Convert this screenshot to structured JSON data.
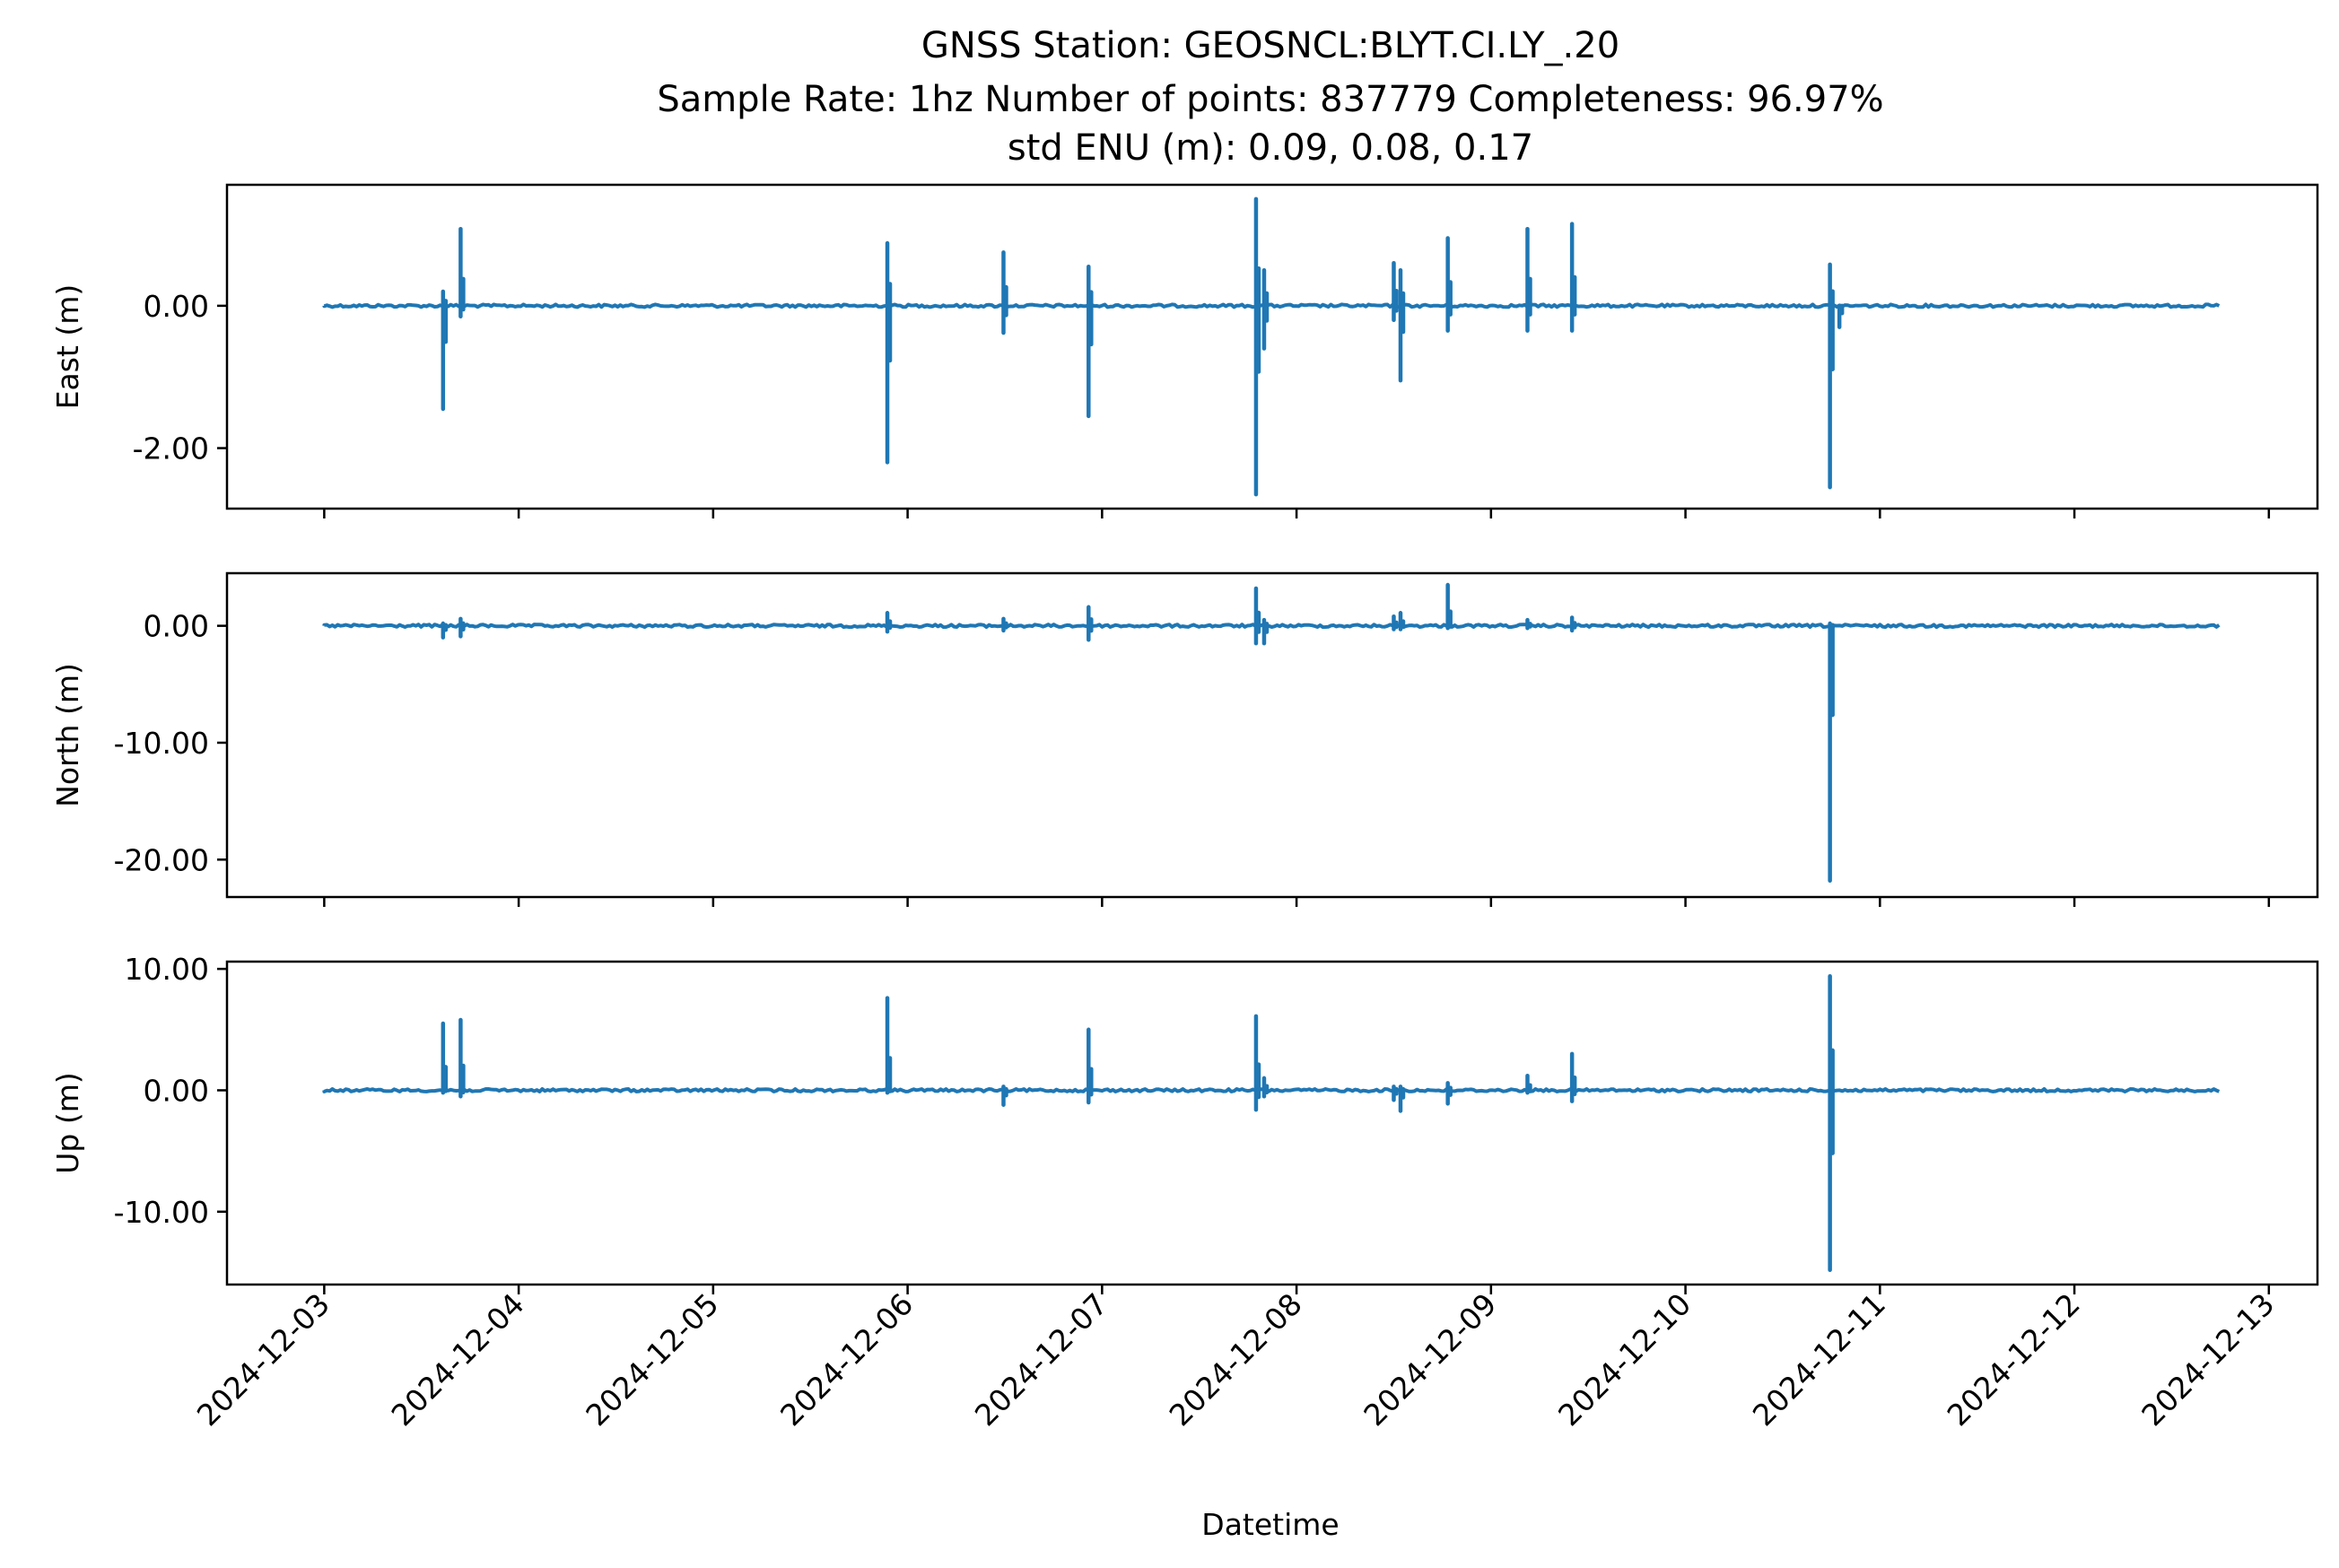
{
  "chart_data": {
    "type": "line",
    "title_lines": [
      "GNSS Station: GEOSNCL:BLYT.CI.LY_.20",
      "Sample Rate: 1hz   Number of points: 837779    Completeness:  96.97%",
      "std ENU (m):  0.09, 0.08, 0.17"
    ],
    "xlabel": "Datetime",
    "x_ticks": [
      "2024-12-03",
      "2024-12-04",
      "2024-12-05",
      "2024-12-06",
      "2024-12-07",
      "2024-12-08",
      "2024-12-09",
      "2024-12-10",
      "2024-12-11",
      "2024-12-12",
      "2024-12-13"
    ],
    "x_range": [
      "2024-12-02T12:00",
      "2024-12-13T06:00"
    ],
    "x_data_range": [
      "2024-12-03T00:00",
      "2024-12-12T18:00"
    ],
    "line_color": "#1f77b4",
    "panels": [
      {
        "key": "east",
        "ylabel": "East (m)",
        "ylim": [
          -2.85,
          1.7
        ],
        "yticks": [
          0.0,
          -2.0
        ],
        "ytick_labels": [
          "0.00",
          "-2.00"
        ],
        "spikes": [
          {
            "t": "2024-12-03T14:40",
            "min": -1.45,
            "max": 0.2
          },
          {
            "t": "2024-12-03T16:50",
            "min": -0.15,
            "max": 1.08
          },
          {
            "t": "2024-12-05T21:30",
            "min": -2.2,
            "max": 0.88
          },
          {
            "t": "2024-12-06T11:50",
            "min": -0.38,
            "max": 0.75
          },
          {
            "t": "2024-12-06T22:20",
            "min": -1.55,
            "max": 0.55
          },
          {
            "t": "2024-12-07T19:00",
            "min": -2.65,
            "max": 1.5
          },
          {
            "t": "2024-12-07T20:00",
            "min": -0.6,
            "max": 0.5
          },
          {
            "t": "2024-12-08T12:00",
            "min": -0.2,
            "max": 0.6
          },
          {
            "t": "2024-12-08T12:50",
            "min": -1.05,
            "max": 0.5
          },
          {
            "t": "2024-12-08T18:40",
            "min": -0.35,
            "max": 0.95
          },
          {
            "t": "2024-12-09T04:30",
            "min": -0.35,
            "max": 1.08
          },
          {
            "t": "2024-12-09T10:00",
            "min": -0.35,
            "max": 1.15
          },
          {
            "t": "2024-12-10T17:50",
            "min": -2.55,
            "max": 0.58
          },
          {
            "t": "2024-12-10T19:00",
            "min": -0.3,
            "max": 0.0
          }
        ]
      },
      {
        "key": "north",
        "ylabel": "North (m)",
        "ylim": [
          -23.2,
          4.5
        ],
        "yticks": [
          0.0,
          -10.0,
          -20.0
        ],
        "ytick_labels": [
          "0.00",
          "-10.00",
          "-20.00"
        ],
        "spikes": [
          {
            "t": "2024-12-03T14:40",
            "min": -1.0,
            "max": 0.2
          },
          {
            "t": "2024-12-03T16:50",
            "min": -0.9,
            "max": 0.6
          },
          {
            "t": "2024-12-05T21:30",
            "min": -0.5,
            "max": 1.1
          },
          {
            "t": "2024-12-06T11:50",
            "min": -0.4,
            "max": 0.6
          },
          {
            "t": "2024-12-06T22:20",
            "min": -1.2,
            "max": 1.6
          },
          {
            "t": "2024-12-07T19:00",
            "min": -1.5,
            "max": 3.2
          },
          {
            "t": "2024-12-07T20:00",
            "min": -1.5,
            "max": 0.5
          },
          {
            "t": "2024-12-08T12:00",
            "min": -0.3,
            "max": 0.8
          },
          {
            "t": "2024-12-08T12:50",
            "min": -0.3,
            "max": 1.1
          },
          {
            "t": "2024-12-08T18:40",
            "min": -0.2,
            "max": 3.5
          },
          {
            "t": "2024-12-09T04:30",
            "min": -0.2,
            "max": 0.5
          },
          {
            "t": "2024-12-09T10:00",
            "min": -0.4,
            "max": 0.7
          },
          {
            "t": "2024-12-10T17:50",
            "min": -21.8,
            "max": 0.2
          }
        ]
      },
      {
        "key": "up",
        "ylabel": "Up (m)",
        "ylim": [
          -16.0,
          10.6
        ],
        "yticks": [
          10.0,
          0.0,
          -10.0
        ],
        "ytick_labels": [
          "10.00",
          "0.00",
          "-10.00"
        ],
        "spikes": [
          {
            "t": "2024-12-03T14:40",
            "min": -0.2,
            "max": 5.5
          },
          {
            "t": "2024-12-03T16:50",
            "min": -0.5,
            "max": 5.8
          },
          {
            "t": "2024-12-05T21:30",
            "min": -0.2,
            "max": 7.6
          },
          {
            "t": "2024-12-06T11:50",
            "min": -1.2,
            "max": 0.3
          },
          {
            "t": "2024-12-06T22:20",
            "min": -1.0,
            "max": 5.0
          },
          {
            "t": "2024-12-07T19:00",
            "min": -1.6,
            "max": 6.1
          },
          {
            "t": "2024-12-07T20:00",
            "min": -0.5,
            "max": 1.0
          },
          {
            "t": "2024-12-08T12:00",
            "min": -0.8,
            "max": 0.3
          },
          {
            "t": "2024-12-08T12:50",
            "min": -1.7,
            "max": 0.3
          },
          {
            "t": "2024-12-08T18:40",
            "min": -1.1,
            "max": 0.6
          },
          {
            "t": "2024-12-09T04:30",
            "min": -0.2,
            "max": 1.2
          },
          {
            "t": "2024-12-09T10:00",
            "min": -0.9,
            "max": 3.0
          },
          {
            "t": "2024-12-10T17:50",
            "min": -14.8,
            "max": 9.4
          }
        ]
      }
    ]
  }
}
